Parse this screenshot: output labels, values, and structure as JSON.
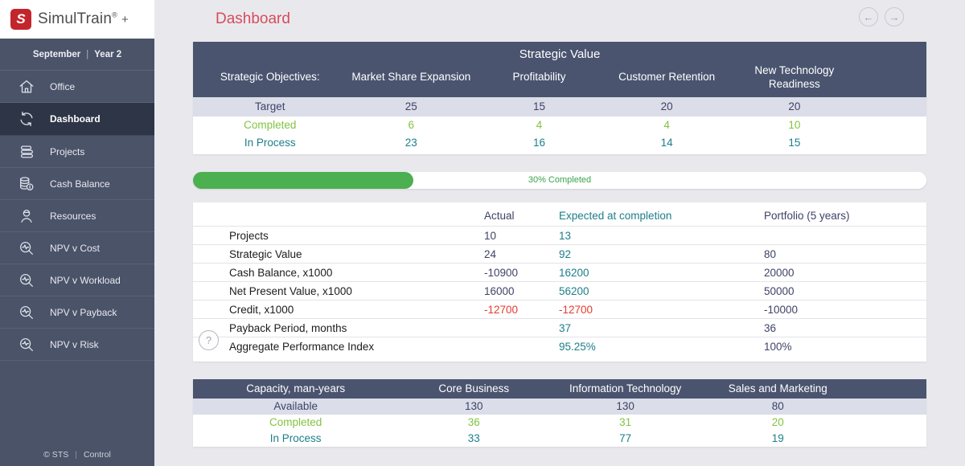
{
  "brand": {
    "logo_letter": "S",
    "name": "SimulTrain",
    "reg": "®",
    "plus": "+"
  },
  "sidebar": {
    "period": {
      "month": "September",
      "divider": "|",
      "year": "Year 2"
    },
    "items": [
      {
        "label": "Office",
        "icon": "home-icon",
        "active": false
      },
      {
        "label": "Dashboard",
        "icon": "dashboard-icon",
        "active": true
      },
      {
        "label": "Projects",
        "icon": "projects-icon",
        "active": false
      },
      {
        "label": "Cash Balance",
        "icon": "coins-icon",
        "active": false
      },
      {
        "label": "Resources",
        "icon": "person-icon",
        "active": false
      },
      {
        "label": "NPV v Cost",
        "icon": "magnifier-pulse-icon",
        "active": false
      },
      {
        "label": "NPV v Workload",
        "icon": "magnifier-pulse-icon",
        "active": false
      },
      {
        "label": "NPV v Payback",
        "icon": "magnifier-pulse-icon",
        "active": false
      },
      {
        "label": "NPV v Risk",
        "icon": "magnifier-pulse-icon",
        "active": false
      }
    ],
    "footer": {
      "copyright": "© STS",
      "divider": "|",
      "control": "Control"
    }
  },
  "header": {
    "title": "Dashboard",
    "nav": {
      "back": "←",
      "forward": "→"
    }
  },
  "chart_data": [
    {
      "type": "table",
      "title": "Strategic Value",
      "categories": [
        "Market Share Expansion",
        "Profitability",
        "Customer Retention",
        "New Technology Readiness"
      ],
      "series": [
        {
          "name": "Target",
          "values": [
            25,
            15,
            20,
            20
          ]
        },
        {
          "name": "Completed",
          "values": [
            6,
            4,
            4,
            10
          ]
        },
        {
          "name": "In Process",
          "values": [
            23,
            16,
            14,
            15
          ]
        }
      ]
    },
    {
      "type": "table",
      "title": "Portfolio summary",
      "categories": [
        "Actual",
        "Expected at completion",
        "Portfolio (5 years)"
      ],
      "series": [
        {
          "name": "Projects",
          "values": [
            "10",
            "13",
            ""
          ]
        },
        {
          "name": "Strategic Value",
          "values": [
            "24",
            "92",
            "80"
          ]
        },
        {
          "name": "Cash Balance, x1000",
          "values": [
            "-10900",
            "16200",
            "20000"
          ]
        },
        {
          "name": "Net Present Value, x1000",
          "values": [
            "16000",
            "56200",
            "50000"
          ]
        },
        {
          "name": "Credit, x1000",
          "values": [
            "-12700",
            "-12700",
            "-10000"
          ]
        },
        {
          "name": "Payback Period, months",
          "values": [
            "",
            "37",
            "36"
          ]
        },
        {
          "name": "Aggregate Performance Index",
          "values": [
            "",
            "95.25%",
            "100%"
          ]
        }
      ]
    },
    {
      "type": "table",
      "title": "Capacity, man-years",
      "categories": [
        "Core Business",
        "Information Technology",
        "Sales and Marketing"
      ],
      "series": [
        {
          "name": "Available",
          "values": [
            130,
            130,
            80
          ]
        },
        {
          "name": "Completed",
          "values": [
            36,
            31,
            20
          ]
        },
        {
          "name": "In Process",
          "values": [
            33,
            77,
            19
          ]
        }
      ]
    }
  ],
  "strategic": {
    "title": "Strategic Value",
    "col_label": "Strategic Objectives:",
    "columns": [
      "Market Share Expansion",
      "Profitability",
      "Customer Retention",
      "New Technology Readiness"
    ],
    "rows": [
      {
        "label": "Target",
        "values": [
          25,
          15,
          20,
          20
        ]
      },
      {
        "label": "Completed",
        "values": [
          6,
          4,
          4,
          10
        ]
      },
      {
        "label": "In Process",
        "values": [
          23,
          16,
          14,
          15
        ]
      }
    ]
  },
  "progress": {
    "percent": 30,
    "label": "30% Completed"
  },
  "summary": {
    "columns": {
      "actual": "Actual",
      "expected": "Expected at completion",
      "portfolio": "Portfolio (5 years)"
    },
    "rows": [
      {
        "label": "Projects",
        "actual": "10",
        "expected": "13",
        "portfolio": ""
      },
      {
        "label": "Strategic Value",
        "actual": "24",
        "expected": "92",
        "portfolio": "80"
      },
      {
        "label": "Cash Balance, x1000",
        "actual": "-10900",
        "expected": "16200",
        "portfolio": "20000"
      },
      {
        "label": "Net Present Value, x1000",
        "actual": "16000",
        "expected": "56200",
        "portfolio": "50000"
      },
      {
        "label": "Credit, x1000",
        "actual": "-12700",
        "expected": "-12700",
        "portfolio": "-10000"
      },
      {
        "label": "Payback Period, months",
        "actual": "",
        "expected": "37",
        "portfolio": "36"
      },
      {
        "label": "Aggregate Performance Index",
        "actual": "",
        "expected": "95.25%",
        "portfolio": "100%"
      }
    ],
    "help": "?"
  },
  "capacity": {
    "col_label": "Capacity, man-years",
    "columns": [
      "Core Business",
      "Information Technology",
      "Sales and Marketing"
    ],
    "rows": [
      {
        "label": "Available",
        "values": [
          130,
          130,
          80
        ]
      },
      {
        "label": "Completed",
        "values": [
          36,
          31,
          20
        ]
      },
      {
        "label": "In Process",
        "values": [
          33,
          77,
          19
        ]
      }
    ]
  },
  "colors": {
    "sidebar": "#4b5368",
    "sidebar_active": "#2e3547",
    "header_dark": "#4a546f",
    "row_lavender": "#dbdde9",
    "green": "#84c342",
    "progress_green": "#4cb050",
    "teal": "#1d7e8a",
    "red": "#e43b30",
    "title_red": "#d54c5c",
    "navy": "#3e4366",
    "logo_red": "#c2262c",
    "page_bg": "#e9e9ed"
  }
}
